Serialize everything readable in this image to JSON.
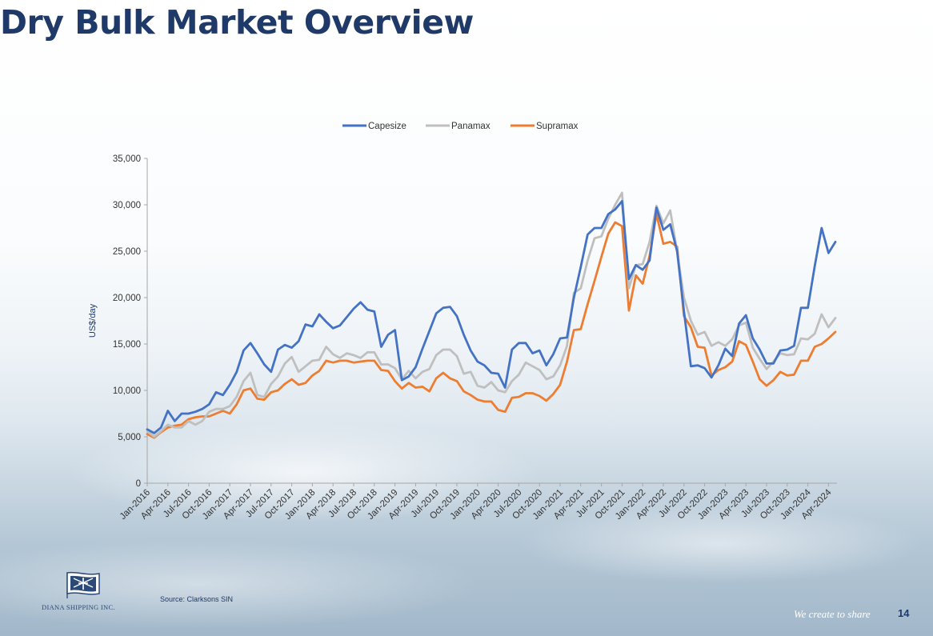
{
  "page": {
    "title": "Dry Bulk Market Overview",
    "source": "Source: Clarksons SIN",
    "company": "DIANA SHIPPING INC.",
    "tagline": "We create to share",
    "page_number": "14"
  },
  "colors": {
    "title": "#1f3a68",
    "capesize": "#4472c4",
    "panamax": "#bfbfbf",
    "supramax": "#ed7d31"
  },
  "chart_data": {
    "type": "line",
    "ylabel": "US$/day",
    "ylim": [
      0,
      35000
    ],
    "yticks": [
      0,
      5000,
      10000,
      15000,
      20000,
      25000,
      30000,
      35000
    ],
    "ytick_labels": [
      "0",
      "5,000",
      "10,000",
      "15,000",
      "20,000",
      "25,000",
      "30,000",
      "35,000"
    ],
    "start_month": "Jan-2016",
    "x_tick_labels": [
      "Jan-2016",
      "Apr-2016",
      "Jul-2016",
      "Oct-2016",
      "Jan-2017",
      "Apr-2017",
      "Jul-2017",
      "Oct-2017",
      "Jan-2018",
      "Apr-2018",
      "Jul-2018",
      "Oct-2018",
      "Jan-2019",
      "Apr-2019",
      "Jul-2019",
      "Oct-2019",
      "Jan-2020",
      "Apr-2020",
      "Jul-2020",
      "Oct-2020",
      "Jan-2021",
      "Apr-2021",
      "Jul-2021",
      "Oct-2021",
      "Jan-2022",
      "Apr-2022",
      "Jul-2022",
      "Oct-2022",
      "Jan-2023",
      "Apr-2023",
      "Jul-2023",
      "Oct-2023",
      "Jan-2024",
      "Apr-2024"
    ],
    "legend_position": "top-center",
    "grid": false,
    "series": [
      {
        "name": "Capesize",
        "color": "#4472c4",
        "values": [
          5800,
          5400,
          6000,
          7800,
          6700,
          7500,
          7500,
          7700,
          8000,
          8500,
          9800,
          9500,
          10600,
          12000,
          14300,
          15100,
          14000,
          12800,
          12000,
          14400,
          14900,
          14600,
          15300,
          17100,
          16900,
          18200,
          17400,
          16700,
          17000,
          17900,
          18800,
          19500,
          18700,
          18500,
          14700,
          16000,
          16500,
          11100,
          11500,
          12500,
          14500,
          16400,
          18300,
          18900,
          19000,
          18000,
          16000,
          14300,
          13100,
          12700,
          11900,
          11800,
          10300,
          14400,
          15100,
          15100,
          14000,
          14300,
          12700,
          13900,
          15600,
          15700,
          20000,
          23300,
          26800,
          27500,
          27500,
          29000,
          29500,
          30400,
          22000,
          23500,
          23000,
          24000,
          29700,
          27300,
          27900,
          25000,
          18500,
          12600,
          12700,
          12400,
          11400,
          12700,
          14500,
          13700,
          17200,
          18100,
          15600,
          14400,
          12900,
          12900,
          14300,
          14400,
          14800,
          18900,
          18900,
          23400,
          27500,
          24800,
          26000
        ]
      },
      {
        "name": "Panamax",
        "color": "#bfbfbf",
        "values": [
          5600,
          5000,
          5600,
          6300,
          6000,
          6000,
          6700,
          6300,
          6700,
          7700,
          8000,
          8000,
          8300,
          9300,
          11000,
          11900,
          9500,
          9300,
          10700,
          11500,
          12900,
          13600,
          12000,
          12600,
          13200,
          13300,
          14700,
          13900,
          13500,
          14000,
          13800,
          13500,
          14100,
          14100,
          12800,
          12800,
          12400,
          11200,
          12100,
          11300,
          12000,
          12300,
          13800,
          14400,
          14400,
          13700,
          11800,
          12000,
          10500,
          10300,
          10900,
          10000,
          9800,
          11000,
          11700,
          13000,
          12600,
          12200,
          11200,
          11500,
          12700,
          14800,
          20500,
          21000,
          24000,
          26400,
          26600,
          28500,
          30000,
          31300,
          21000,
          23500,
          23600,
          26000,
          29900,
          28000,
          29400,
          25000,
          20000,
          17500,
          16000,
          16300,
          14800,
          15200,
          14800,
          15500,
          17000,
          17300,
          14600,
          13400,
          12300,
          13100,
          14000,
          13800,
          13900,
          15600,
          15500,
          16100,
          18200,
          16800,
          17800
        ]
      },
      {
        "name": "Supramax",
        "color": "#ed7d31",
        "values": [
          5300,
          4900,
          5500,
          6000,
          6200,
          6300,
          6900,
          7100,
          7200,
          7200,
          7500,
          7800,
          7500,
          8500,
          10000,
          10200,
          9100,
          9000,
          9800,
          10000,
          10700,
          11200,
          10600,
          10800,
          11600,
          12100,
          13200,
          13000,
          13200,
          13200,
          13000,
          13100,
          13200,
          13200,
          12200,
          12100,
          11000,
          10200,
          10800,
          10300,
          10400,
          9900,
          11300,
          11900,
          11300,
          11000,
          9900,
          9500,
          9000,
          8800,
          8800,
          7900,
          7700,
          9200,
          9300,
          9700,
          9700,
          9400,
          8900,
          9600,
          10600,
          13100,
          16500,
          16600,
          19300,
          21800,
          24400,
          26900,
          28100,
          27700,
          18600,
          22400,
          21500,
          24500,
          29000,
          25800,
          26000,
          25500,
          18000,
          16800,
          14700,
          14600,
          11600,
          12200,
          12500,
          13100,
          15300,
          14900,
          13100,
          11200,
          10500,
          11100,
          12000,
          11600,
          11700,
          13200,
          13200,
          14700,
          15000,
          15600,
          16300
        ]
      }
    ]
  }
}
